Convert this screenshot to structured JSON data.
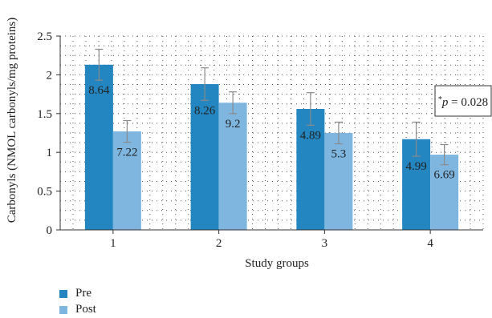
{
  "chart_data": {
    "type": "bar",
    "categories": [
      "1",
      "2",
      "3",
      "4"
    ],
    "series": [
      {
        "name": "Pre",
        "color": "#2386c0",
        "values": [
          2.13,
          1.88,
          1.56,
          1.17
        ],
        "errors": [
          0.2,
          0.21,
          0.21,
          0.22
        ],
        "labels": [
          "8.64",
          "8.26",
          "4.89",
          "4.99"
        ]
      },
      {
        "name": "Post",
        "color": "#7fb6e0",
        "values": [
          1.27,
          1.64,
          1.25,
          0.97
        ],
        "errors": [
          0.14,
          0.14,
          0.14,
          0.13
        ],
        "labels": [
          "7.22",
          "9.2",
          "5.3",
          "6.69"
        ]
      }
    ],
    "title": "",
    "xlabel": "Study groups",
    "ylabel": "Carbonyls (NMOL carbonyls/mg proteins)",
    "ylim": [
      0,
      2.5
    ],
    "yticks": [
      "0",
      "0.5",
      "1",
      "1.5",
      "2",
      "2.5"
    ],
    "grid": true,
    "legend_position": "bottom-left",
    "annotation": {
      "sup": "*",
      "var": "p",
      "rest": " = 0.028"
    }
  }
}
